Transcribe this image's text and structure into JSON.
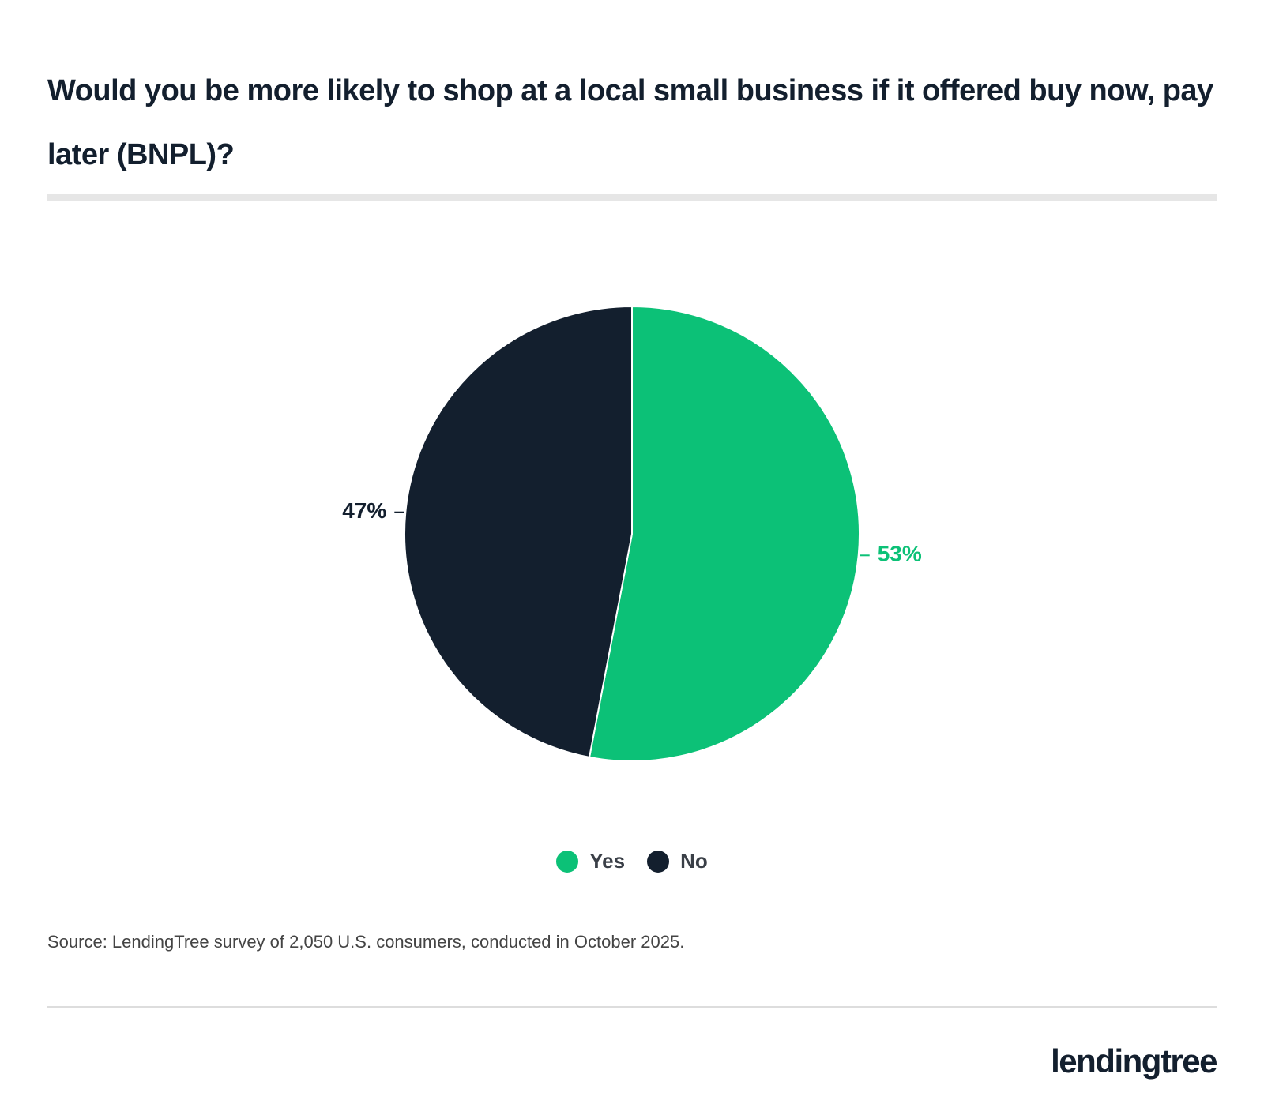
{
  "chart_data": {
    "type": "pie",
    "title": "Would you be more likely to shop at a local small business if it offered buy now, pay later (BNPL)?",
    "categories": [
      "Yes",
      "No"
    ],
    "values": [
      53,
      47
    ],
    "value_labels": [
      "53%",
      "47%"
    ],
    "colors": [
      "#0cc177",
      "#131f2e"
    ],
    "source": "Source: LendingTree survey of 2,050 U.S. consumers, conducted in October 2025."
  },
  "logo": "lendingtree"
}
